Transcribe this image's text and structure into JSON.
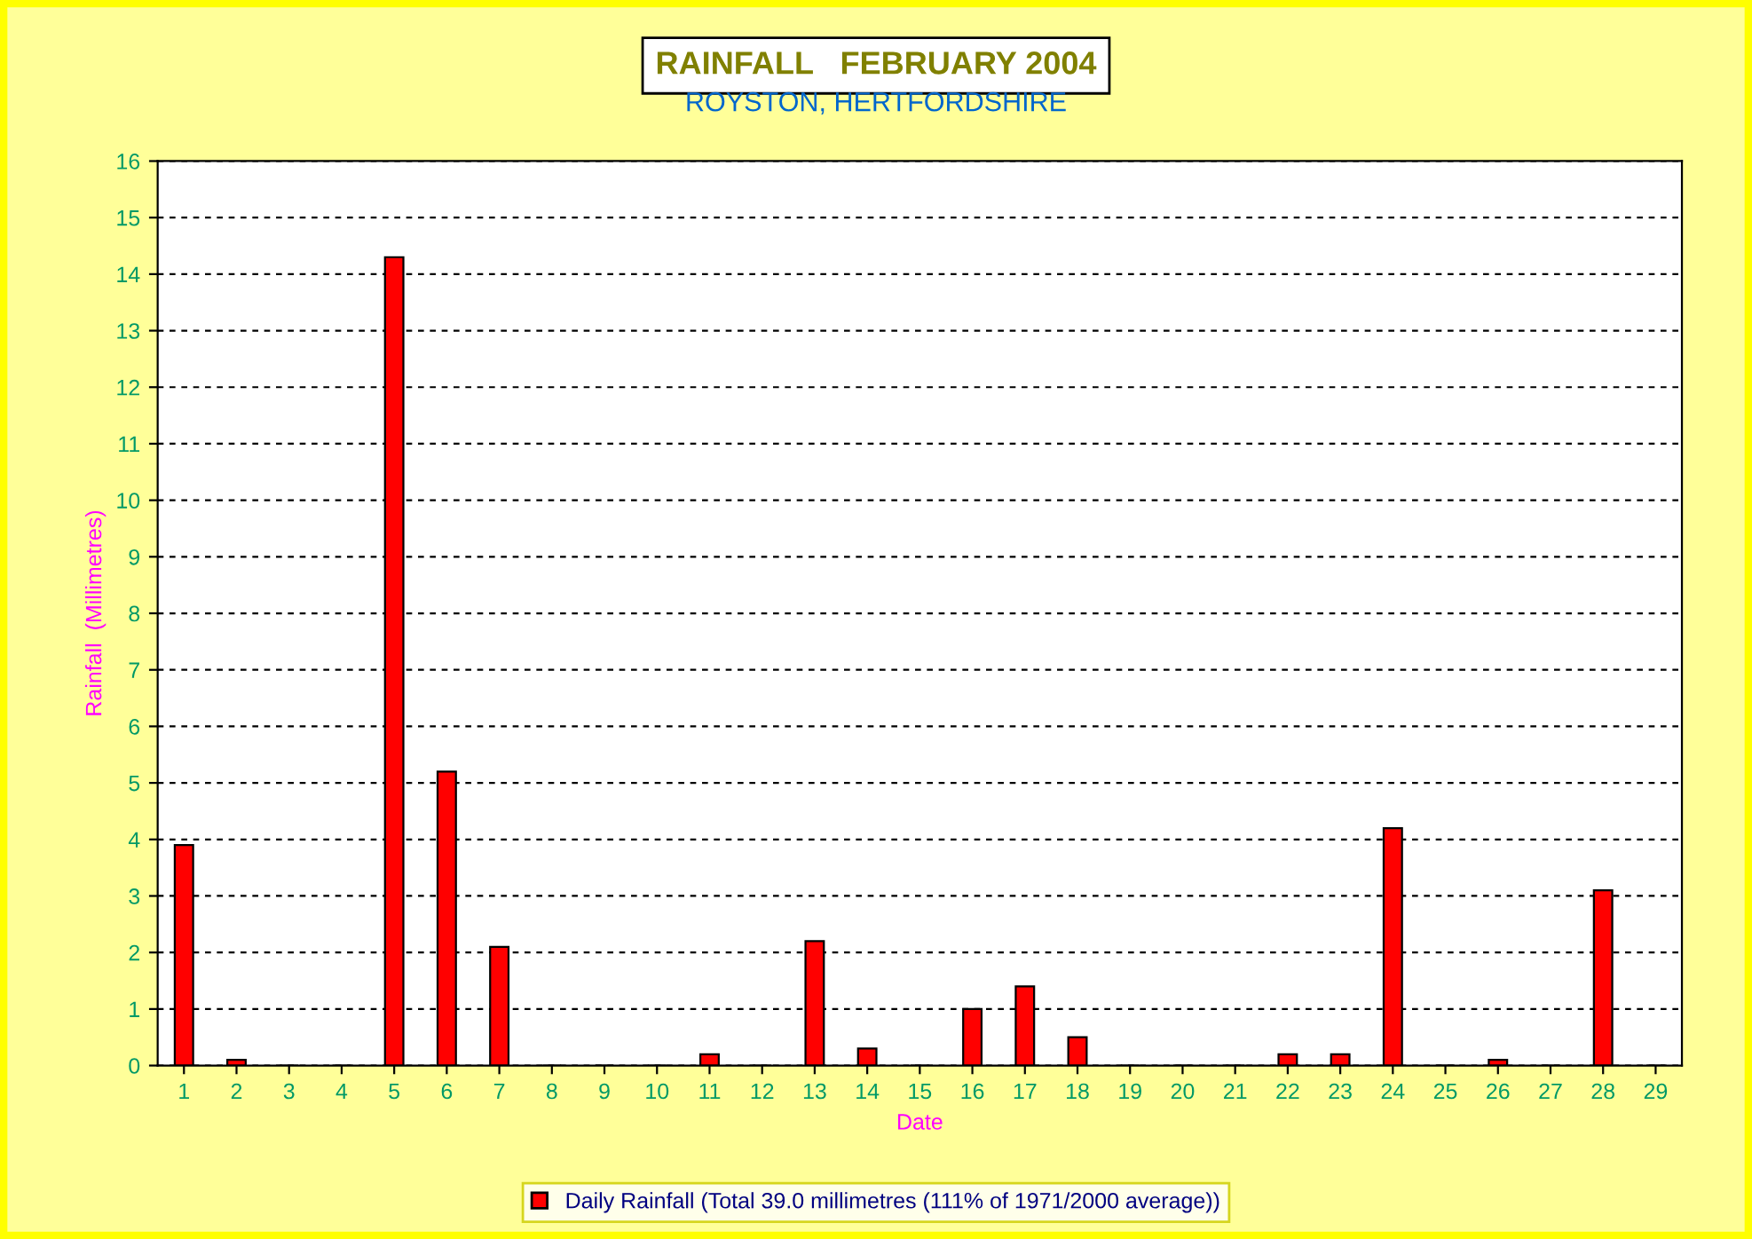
{
  "chart_data": {
    "type": "bar",
    "title": "RAINFALL   FEBRUARY 2004",
    "subtitle": "ROYSTON, HERTFORDSHIRE",
    "xlabel": "Date",
    "ylabel": "Rainfall  (Millimetres)",
    "categories": [
      "1",
      "2",
      "3",
      "4",
      "5",
      "6",
      "7",
      "8",
      "9",
      "10",
      "11",
      "12",
      "13",
      "14",
      "15",
      "16",
      "17",
      "18",
      "19",
      "20",
      "21",
      "22",
      "23",
      "24",
      "25",
      "26",
      "27",
      "28",
      "29"
    ],
    "series": [
      {
        "name": "Daily Rainfall (Total 39.0 millimetres (111% of 1971/2000 average))",
        "color": "#ff0000",
        "values": [
          3.9,
          0.1,
          0,
          0,
          14.3,
          5.2,
          2.1,
          0,
          0,
          0,
          0.2,
          0,
          2.2,
          0.3,
          0,
          1.0,
          1.4,
          0.5,
          0,
          0,
          0,
          0.2,
          0.2,
          4.2,
          0,
          0.1,
          0,
          3.1,
          0
        ]
      }
    ],
    "ylim": [
      0,
      16
    ],
    "yticks": [
      0,
      1,
      2,
      3,
      4,
      5,
      6,
      7,
      8,
      9,
      10,
      11,
      12,
      13,
      14,
      15,
      16
    ],
    "grid": "y",
    "legend": "bottom"
  }
}
